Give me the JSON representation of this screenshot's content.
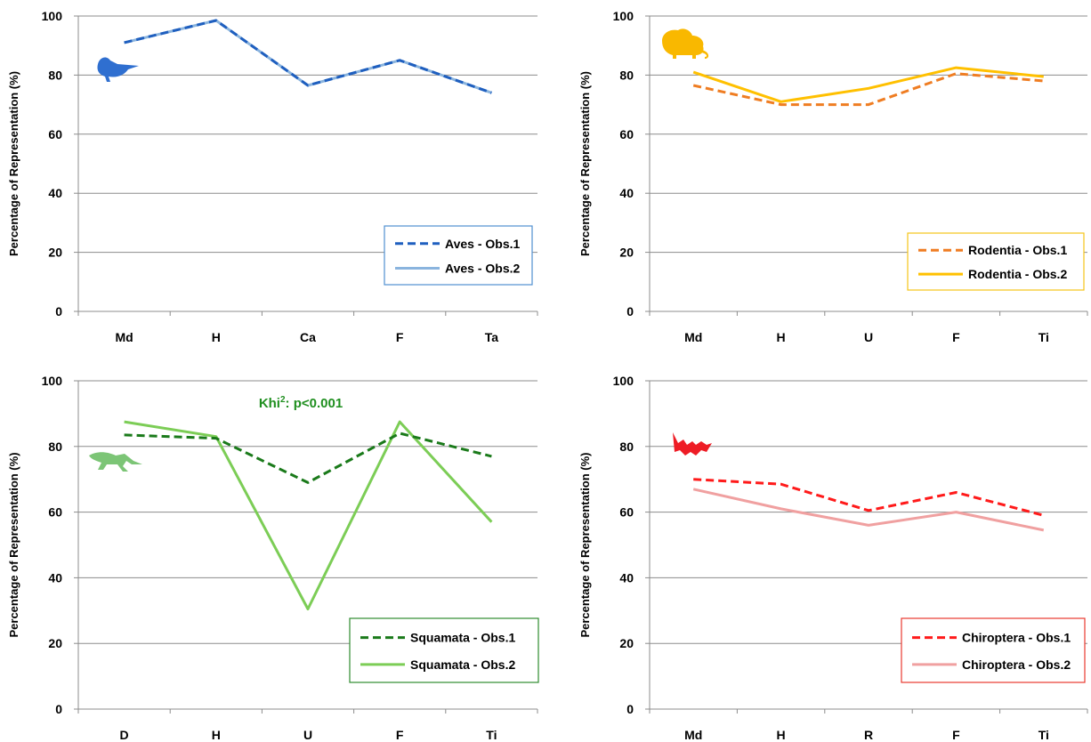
{
  "y_axis_label": "Percentage of Representation (%)",
  "chart_data": [
    {
      "type": "line",
      "categories": [
        "Md",
        "H",
        "Ca",
        "F",
        "Ta"
      ],
      "ylim": [
        0,
        100
      ],
      "yticks": [
        0,
        20,
        40,
        60,
        80,
        100
      ],
      "ylabel": "Percentage of Representation (%)",
      "grid": true,
      "legend_position": "bottom-right",
      "legend_border_color": "#4f8fd0",
      "icon": "bird-icon",
      "icon_color": "#2f6fd0",
      "annotation": "",
      "series": [
        {
          "name": "Aves - Obs.1",
          "values": [
            91,
            98.5,
            76.5,
            85,
            74
          ],
          "color": "#1f5fbf",
          "dashed": true
        },
        {
          "name": "Aves - Obs.2",
          "values": [
            91,
            98.5,
            76.5,
            85,
            74
          ],
          "color": "#8ab4de",
          "dashed": false
        }
      ]
    },
    {
      "type": "line",
      "categories": [
        "Md",
        "H",
        "U",
        "F",
        "Ti"
      ],
      "ylim": [
        0,
        100
      ],
      "yticks": [
        0,
        20,
        40,
        60,
        80,
        100
      ],
      "ylabel": "Percentage of Representation (%)",
      "grid": true,
      "legend_position": "bottom-right",
      "legend_border_color": "#f5c518",
      "icon": "rodent-icon",
      "icon_color": "#f9b800",
      "annotation": "",
      "series": [
        {
          "name": "Rodentia - Obs.1",
          "values": [
            76.5,
            70,
            70,
            80.5,
            78
          ],
          "color": "#ef7d22",
          "dashed": true
        },
        {
          "name": "Rodentia - Obs.2",
          "values": [
            81,
            71,
            75.5,
            82.5,
            79.5
          ],
          "color": "#ffc000",
          "dashed": false
        }
      ]
    },
    {
      "type": "line",
      "categories": [
        "D",
        "H",
        "U",
        "F",
        "Ti"
      ],
      "ylim": [
        0,
        100
      ],
      "yticks": [
        0,
        20,
        40,
        60,
        80,
        100
      ],
      "ylabel": "Percentage of Representation (%)",
      "grid": true,
      "legend_position": "bottom-right",
      "legend_border_color": "#2e8b2e",
      "icon": "lizard-icon",
      "icon_color": "#7cc576",
      "annotation": {
        "prefix": "Khi",
        "sup": "2",
        "suffix": ": p<0.001",
        "color": "#1f8f1f"
      },
      "series": [
        {
          "name": "Squamata - Obs.1",
          "values": [
            83.5,
            82.5,
            69,
            84,
            77
          ],
          "color": "#1a7a1a",
          "dashed": true
        },
        {
          "name": "Squamata - Obs.2",
          "values": [
            87.5,
            83,
            30.5,
            87.5,
            57
          ],
          "color": "#7ccd56",
          "dashed": false
        }
      ]
    },
    {
      "type": "line",
      "categories": [
        "Md",
        "H",
        "R",
        "F",
        "Ti"
      ],
      "ylim": [
        0,
        100
      ],
      "yticks": [
        0,
        20,
        40,
        60,
        80,
        100
      ],
      "ylabel": "Percentage of Representation (%)",
      "grid": true,
      "legend_position": "bottom-right",
      "legend_border_color": "#e8382f",
      "icon": "bat-icon",
      "icon_color": "#ee1c25",
      "annotation": "",
      "series": [
        {
          "name": "Chiroptera - Obs.1",
          "values": [
            70,
            68.5,
            60.5,
            66,
            59
          ],
          "color": "#ff1a1a",
          "dashed": true
        },
        {
          "name": "Chiroptera - Obs.2",
          "values": [
            67,
            61,
            56,
            60,
            54.5
          ],
          "color": "#f0a0a0",
          "dashed": false
        }
      ]
    }
  ]
}
